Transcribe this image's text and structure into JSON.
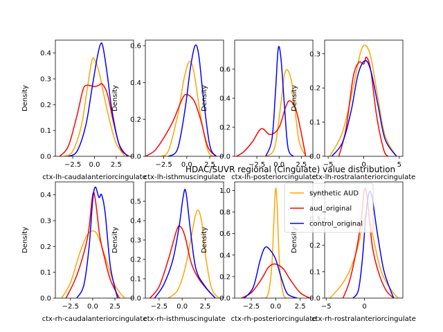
{
  "figure": {
    "title": "HDAC/SUVR regional (Cingulate) value distribution",
    "legend": {
      "placement": "upper-right",
      "entries": [
        {
          "label": "synthetic AUD",
          "color": "#ffa500"
        },
        {
          "label": "aud_original",
          "color": "#ff0000"
        },
        {
          "label": "control_original",
          "color": "#0000ff"
        }
      ]
    }
  },
  "chart_data": [
    {
      "type": "line",
      "ylabel": "Density",
      "xlabel": "ctx-lh-caudalanteriorcingulate",
      "xlim": [
        -4.5,
        4.5
      ],
      "ylim": [
        0,
        0.45
      ],
      "xticks": [
        -2.5,
        0.0,
        2.5
      ],
      "xtick_labels": [
        "−2.5",
        "0.0",
        "2.5"
      ],
      "yticks": [
        0,
        0.1,
        0.2,
        0.3,
        0.4
      ],
      "ytick_labels": [
        "0.0",
        "0.1",
        "0.2",
        "0.3",
        "0.4"
      ],
      "series": [
        {
          "name": "synthetic AUD",
          "color": "#ffa500",
          "x": [
            -3.5,
            -2.5,
            -1.5,
            -0.8,
            -0.3,
            0.0,
            0.5,
            1.0,
            1.8,
            2.5,
            3.5
          ],
          "y": [
            0.0,
            0.02,
            0.12,
            0.27,
            0.37,
            0.375,
            0.33,
            0.25,
            0.13,
            0.05,
            0.0
          ]
        },
        {
          "name": "aud_original",
          "color": "#ff0000",
          "x": [
            -4.0,
            -3.0,
            -2.0,
            -1.3,
            -0.8,
            0.0,
            0.5,
            0.9,
            1.5,
            2.2,
            3.0,
            4.0
          ],
          "y": [
            0.0,
            0.04,
            0.16,
            0.26,
            0.275,
            0.27,
            0.275,
            0.28,
            0.24,
            0.13,
            0.03,
            0.0
          ]
        },
        {
          "name": "control_original",
          "color": "#0000ff",
          "x": [
            -3.0,
            -2.0,
            -1.0,
            -0.3,
            0.3,
            0.7,
            1.0,
            1.5,
            2.0,
            2.8,
            3.8
          ],
          "y": [
            0.0,
            0.02,
            0.12,
            0.26,
            0.38,
            0.435,
            0.42,
            0.31,
            0.18,
            0.05,
            0.0
          ]
        }
      ]
    },
    {
      "type": "line",
      "ylabel": "Density",
      "xlabel": "ctx-lh-isthmuscingulate",
      "xlim": [
        -4.5,
        4.0
      ],
      "ylim": [
        0,
        0.63
      ],
      "xticks": [
        -2.5,
        0.0,
        2.5
      ],
      "xtick_labels": [
        "−2.5",
        "0.0",
        "2.5"
      ],
      "yticks": [
        0,
        0.2,
        0.4,
        0.6
      ],
      "ytick_labels": [
        "0.0",
        "0.2",
        "0.4",
        "0.6"
      ],
      "series": [
        {
          "name": "synthetic AUD",
          "color": "#ffa500",
          "x": [
            -2.8,
            -2.0,
            -1.0,
            -0.3,
            0.3,
            0.8,
            1.5,
            2.3,
            3.0
          ],
          "y": [
            0.0,
            0.03,
            0.22,
            0.42,
            0.515,
            0.45,
            0.22,
            0.03,
            0.0
          ]
        },
        {
          "name": "aud_original",
          "color": "#ff0000",
          "x": [
            -4.5,
            -3.5,
            -2.5,
            -1.5,
            -0.5,
            0.0,
            0.8,
            1.5,
            2.3,
            3.2
          ],
          "y": [
            0.0,
            0.03,
            0.1,
            0.19,
            0.31,
            0.335,
            0.3,
            0.2,
            0.05,
            0.0
          ]
        },
        {
          "name": "control_original",
          "color": "#0000ff",
          "x": [
            -2.0,
            -1.0,
            -0.2,
            0.4,
            0.9,
            1.3,
            1.8,
            2.5,
            3.2
          ],
          "y": [
            0.0,
            0.04,
            0.25,
            0.48,
            0.6,
            0.55,
            0.32,
            0.06,
            0.0
          ]
        }
      ]
    },
    {
      "type": "line",
      "ylabel": "Density",
      "xlabel": "ctx-lh-posteriorcingulate",
      "xlim": [
        -5.0,
        3.8
      ],
      "ylim": [
        0,
        0.8
      ],
      "xticks": [
        -2.5,
        0.0,
        2.5
      ],
      "xtick_labels": [
        "−2.5",
        "0.0",
        "2.5"
      ],
      "yticks": [
        0,
        0.2,
        0.4,
        0.6
      ],
      "ytick_labels": [
        "0.0",
        "0.2",
        "0.4",
        "0.6"
      ],
      "series": [
        {
          "name": "synthetic AUD",
          "color": "#ffa500",
          "x": [
            -1.5,
            -0.5,
            0.2,
            0.6,
            1.0,
            1.5,
            2.2,
            3.0
          ],
          "y": [
            0.0,
            0.06,
            0.36,
            0.56,
            0.59,
            0.48,
            0.12,
            0.0
          ]
        },
        {
          "name": "aud_original",
          "color": "#ff0000",
          "x": [
            -4.8,
            -4.0,
            -3.0,
            -2.0,
            -1.0,
            0.0,
            0.8,
            1.3,
            2.0,
            3.0
          ],
          "y": [
            0.0,
            0.03,
            0.1,
            0.19,
            0.15,
            0.2,
            0.35,
            0.38,
            0.3,
            0.0
          ]
        },
        {
          "name": "control_original",
          "color": "#0000ff",
          "x": [
            -1.5,
            -0.8,
            -0.4,
            -0.1,
            0.2,
            0.6,
            1.0,
            1.6
          ],
          "y": [
            0.0,
            0.12,
            0.45,
            0.74,
            0.68,
            0.35,
            0.06,
            0.0
          ]
        }
      ]
    },
    {
      "type": "line",
      "ylabel": "Density",
      "xlabel": "ctx-lh-rostralanteriorcingulate",
      "xlim": [
        -5.5,
        5.5
      ],
      "ylim": [
        0,
        0.34
      ],
      "xticks": [
        -5,
        0,
        5
      ],
      "xtick_labels": [
        "−5",
        "0",
        "5"
      ],
      "yticks": [
        0,
        0.1,
        0.2,
        0.3
      ],
      "ytick_labels": [
        "0.0",
        "0.1",
        "0.2",
        "0.3"
      ],
      "series": [
        {
          "name": "synthetic AUD",
          "color": "#ffa500",
          "x": [
            -4.8,
            -3.0,
            -1.5,
            -0.5,
            0.2,
            1.0,
            2.0,
            3.0,
            4.6
          ],
          "y": [
            0.0,
            0.07,
            0.2,
            0.3,
            0.325,
            0.29,
            0.17,
            0.06,
            0.0
          ]
        },
        {
          "name": "aud_original",
          "color": "#ff0000",
          "x": [
            -3.5,
            -2.5,
            -1.5,
            -0.7,
            0.0,
            0.4,
            1.0,
            1.8,
            2.8,
            3.4
          ],
          "y": [
            0.0,
            0.08,
            0.23,
            0.275,
            0.27,
            0.29,
            0.25,
            0.12,
            0.02,
            0.0
          ]
        },
        {
          "name": "control_original",
          "color": "#0000ff",
          "x": [
            -4.5,
            -3.0,
            -1.8,
            -0.8,
            0.2,
            1.0,
            2.0,
            3.0,
            4.6
          ],
          "y": [
            0.0,
            0.04,
            0.13,
            0.24,
            0.28,
            0.25,
            0.15,
            0.05,
            0.0
          ]
        }
      ]
    },
    {
      "type": "line",
      "ylabel": "Density",
      "xlabel": "ctx-rh-caudalanteriorcingulate",
      "xlim": [
        -4.2,
        4.6
      ],
      "ylim": [
        0,
        0.45
      ],
      "xticks": [
        -2.5,
        0.0,
        2.5
      ],
      "xtick_labels": [
        "−2.5",
        "0.0",
        "2.5"
      ],
      "yticks": [
        0,
        0.1,
        0.2,
        0.3,
        0.4
      ],
      "ytick_labels": [
        "0.0",
        "0.1",
        "0.2",
        "0.3",
        "0.4"
      ],
      "series": [
        {
          "name": "synthetic AUD",
          "color": "#ffa500",
          "x": [
            -3.5,
            -2.5,
            -1.5,
            -0.7,
            0.0,
            0.6,
            1.5,
            2.5,
            3.6
          ],
          "y": [
            0.0,
            0.06,
            0.17,
            0.24,
            0.26,
            0.24,
            0.15,
            0.05,
            0.0
          ]
        },
        {
          "name": "aud_original",
          "color": "#ff0000",
          "x": [
            -3.0,
            -2.0,
            -1.2,
            -0.5,
            0.0,
            0.3,
            0.8,
            1.3,
            2.0,
            3.0
          ],
          "y": [
            0.0,
            0.07,
            0.15,
            0.25,
            0.4,
            0.38,
            0.24,
            0.16,
            0.07,
            0.0
          ]
        },
        {
          "name": "control_original",
          "color": "#0000ff",
          "x": [
            -1.8,
            -1.0,
            -0.4,
            0.0,
            0.3,
            0.7,
            1.0,
            1.4,
            2.0,
            2.8
          ],
          "y": [
            0.0,
            0.05,
            0.2,
            0.38,
            0.43,
            0.39,
            0.4,
            0.33,
            0.12,
            0.0
          ]
        }
      ]
    },
    {
      "type": "line",
      "ylabel": "Density",
      "xlabel": "ctx-rh-isthmuscingulate",
      "xlim": [
        -4.0,
        4.5
      ],
      "ylim": [
        0,
        0.6
      ],
      "xticks": [
        -2.5,
        0.0,
        2.5
      ],
      "xtick_labels": [
        "−2.5",
        "0.0",
        "2.5"
      ],
      "yticks": [
        0,
        0.1,
        0.2,
        0.3,
        0.4,
        0.5
      ],
      "ytick_labels": [
        "0.0",
        "0.1",
        "0.2",
        "0.3",
        "0.4",
        "0.5"
      ],
      "series": [
        {
          "name": "synthetic AUD",
          "color": "#ffa500",
          "x": [
            -1.5,
            -0.5,
            0.3,
            1.0,
            1.6,
            2.1,
            2.6,
            3.2,
            4.0
          ],
          "y": [
            0.0,
            0.04,
            0.15,
            0.32,
            0.45,
            0.4,
            0.2,
            0.05,
            0.0
          ]
        },
        {
          "name": "aud_original",
          "color": "#ff0000",
          "x": [
            -3.5,
            -2.5,
            -1.5,
            -0.6,
            -0.2,
            0.3,
            1.0,
            1.8,
            2.8,
            3.6
          ],
          "y": [
            0.0,
            0.06,
            0.2,
            0.35,
            0.37,
            0.32,
            0.18,
            0.1,
            0.04,
            0.0
          ]
        },
        {
          "name": "control_original",
          "color": "#0000ff",
          "x": [
            -3.0,
            -2.0,
            -1.0,
            -0.3,
            0.1,
            0.4,
            0.9,
            1.5,
            2.5,
            3.6
          ],
          "y": [
            0.0,
            0.07,
            0.2,
            0.38,
            0.52,
            0.55,
            0.35,
            0.15,
            0.06,
            0.0
          ]
        }
      ]
    },
    {
      "type": "line",
      "ylabel": "Density",
      "xlabel": "ctx-rh-posteriorcingulate",
      "xlim": [
        -4.2,
        3.8
      ],
      "ylim": [
        0,
        1.08
      ],
      "xticks": [
        -2.5,
        0.0,
        2.5
      ],
      "xtick_labels": [
        "−2.5",
        "0.0",
        "2.5"
      ],
      "yticks": [
        0,
        0.2,
        0.4,
        0.6,
        0.8,
        1.0
      ],
      "ytick_labels": [
        "0.0",
        "0.2",
        "0.4",
        "0.6",
        "0.8",
        "1.0"
      ],
      "series": [
        {
          "name": "synthetic AUD",
          "color": "#ffa500",
          "x": [
            -1.5,
            -0.8,
            -0.4,
            -0.15,
            0.0,
            0.15,
            0.4,
            0.8,
            1.5
          ],
          "y": [
            0.0,
            0.03,
            0.3,
            0.8,
            1.02,
            0.85,
            0.3,
            0.03,
            0.0
          ]
        },
        {
          "name": "aud_original",
          "color": "#ff0000",
          "x": [
            -3.5,
            -2.5,
            -1.5,
            -0.8,
            -0.3,
            0.2,
            0.8,
            1.5,
            2.5,
            3.5
          ],
          "y": [
            0.0,
            0.05,
            0.17,
            0.28,
            0.315,
            0.31,
            0.27,
            0.17,
            0.05,
            0.0
          ]
        },
        {
          "name": "control_original",
          "color": "#0000ff",
          "x": [
            -3.2,
            -2.3,
            -1.6,
            -1.1,
            -0.6,
            0.0,
            0.6,
            1.2,
            2.2
          ],
          "y": [
            0.0,
            0.1,
            0.35,
            0.47,
            0.45,
            0.36,
            0.18,
            0.04,
            0.0
          ]
        }
      ]
    },
    {
      "type": "line",
      "ylabel": "Density",
      "xlabel": "ctx-rh-rostralanteriorcingulate",
      "xlim": [
        -5.2,
        5.0
      ],
      "ylim": [
        0,
        0.44
      ],
      "xticks": [
        -5,
        0
      ],
      "xtick_labels": [
        "−5",
        "0"
      ],
      "yticks": [
        0,
        0.1,
        0.2,
        0.3,
        0.4
      ],
      "ytick_labels": [
        "0.0",
        "0.1",
        "0.2",
        "0.3",
        "0.4"
      ],
      "series": [
        {
          "name": "synthetic AUD",
          "color": "#ffa500",
          "x": [
            -4.5,
            -3.0,
            -2.0,
            -1.0,
            -0.2,
            0.4,
            1.2,
            2.2,
            3.5,
            4.4
          ],
          "y": [
            0.0,
            0.05,
            0.1,
            0.18,
            0.28,
            0.32,
            0.22,
            0.1,
            0.03,
            0.0
          ]
        },
        {
          "name": "aud_original",
          "color": "#ff0000",
          "x": [
            -2.8,
            -2.0,
            -1.2,
            -0.5,
            0.0,
            0.4,
            1.0,
            1.8,
            2.8,
            3.8
          ],
          "y": [
            0.0,
            0.06,
            0.16,
            0.28,
            0.41,
            0.37,
            0.2,
            0.1,
            0.03,
            0.0
          ]
        },
        {
          "name": "control_original",
          "color": "#0000ff",
          "x": [
            -1.5,
            -0.8,
            -0.3,
            0.2,
            0.6,
            1.0,
            1.6,
            2.4,
            3.0,
            3.8
          ],
          "y": [
            0.0,
            0.03,
            0.14,
            0.32,
            0.4,
            0.38,
            0.26,
            0.12,
            0.06,
            0.0
          ]
        }
      ]
    }
  ]
}
